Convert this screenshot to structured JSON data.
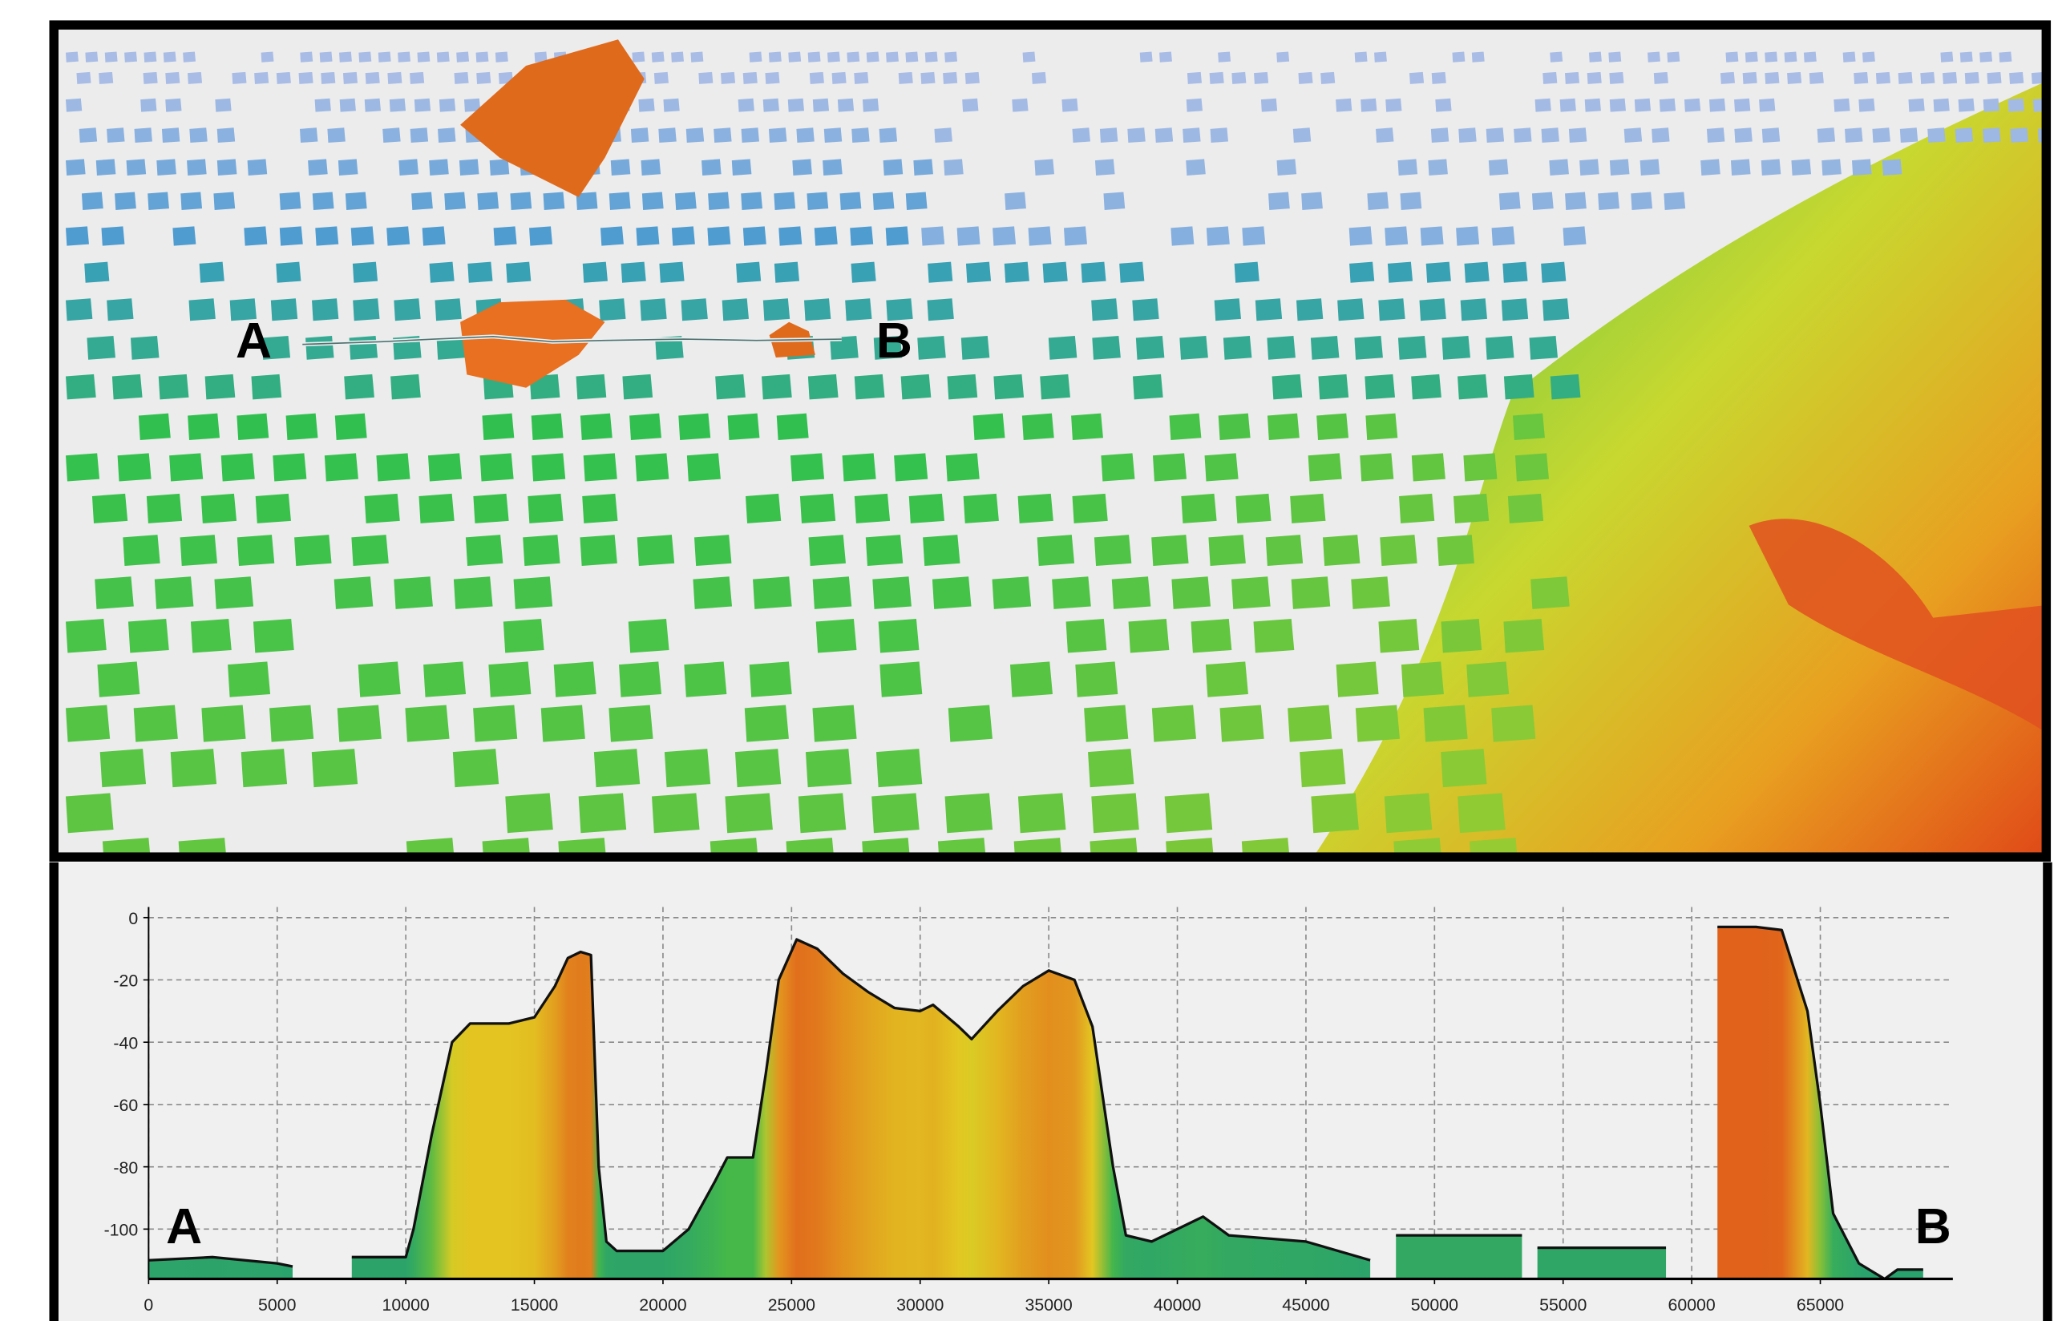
{
  "view": {
    "start_label": "A",
    "end_label": "B"
  },
  "chart_data": {
    "type": "area",
    "annotations": [
      "A",
      "B"
    ],
    "x": [
      0,
      2500,
      5000,
      5600,
      6700,
      7900,
      10000,
      10300,
      11000,
      11800,
      12500,
      14000,
      15000,
      15800,
      16300,
      16800,
      17200,
      17500,
      17800,
      18200,
      20000,
      21000,
      22000,
      22500,
      23500,
      24000,
      24500,
      25200,
      26000,
      27000,
      28000,
      29000,
      30000,
      30500,
      31500,
      32000,
      33000,
      34000,
      35000,
      36000,
      36700,
      37500,
      38000,
      39000,
      40000,
      41000,
      42000,
      45000,
      47500,
      48000,
      48500,
      53400,
      53700,
      54000,
      59000,
      60000,
      61000,
      62500,
      63500,
      64500,
      65000,
      65500,
      66500,
      67500,
      68000,
      69000
    ],
    "values": [
      -110,
      -109,
      -111,
      -112,
      null,
      -109,
      -109,
      -100,
      -70,
      -40,
      -34,
      -34,
      -32,
      -22,
      -13,
      -11,
      -12,
      -80,
      -104,
      -107,
      -107,
      -100,
      -85,
      -77,
      -77,
      -50,
      -20,
      -7,
      -10,
      -18,
      -24,
      -29,
      -30,
      -28,
      -35,
      -39,
      -30,
      -22,
      -17,
      -20,
      -35,
      -80,
      -102,
      -104,
      -100,
      -96,
      -102,
      -104,
      -110,
      null,
      -102,
      -102,
      null,
      -106,
      -106,
      null,
      -3,
      -3,
      -4,
      -30,
      -60,
      -95,
      -111,
      -116,
      -113,
      -113
    ],
    "colors": [
      "#27a070",
      "#46b848",
      "#e3cc22",
      "#e04f1a"
    ],
    "line_color": "#111111",
    "xlim": [
      0,
      70000
    ],
    "ylim": [
      -116,
      3
    ],
    "xticks": [
      0,
      5000,
      10000,
      15000,
      20000,
      25000,
      30000,
      35000,
      40000,
      45000,
      50000,
      55000,
      60000,
      65000
    ],
    "yticks": [
      0,
      -20,
      -40,
      -60,
      -80,
      -100
    ],
    "grid": true
  }
}
